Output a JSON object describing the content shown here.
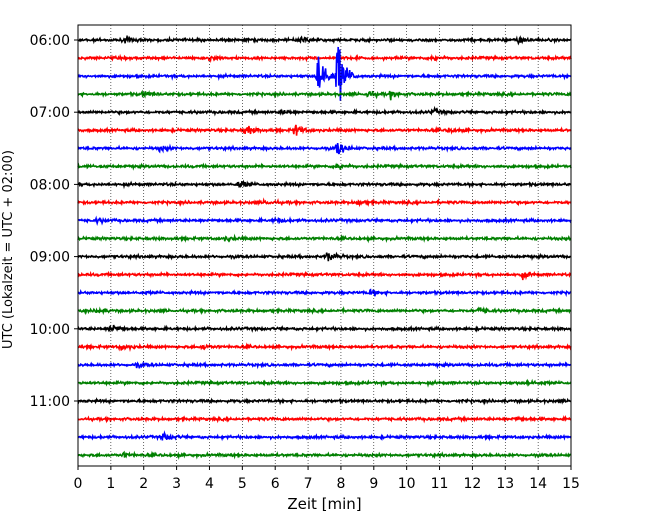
{
  "chart_data": {
    "type": "line",
    "title": "",
    "xlabel": "Zeit  [min]",
    "ylabel": "UTC (Lokalzeit = UTC + 02:00)",
    "xlim": [
      0,
      15
    ],
    "x_ticks": [
      0,
      1,
      2,
      3,
      4,
      5,
      6,
      7,
      8,
      9,
      10,
      11,
      12,
      13,
      14,
      15
    ],
    "x_grid": true,
    "trace_interval_min": 15,
    "row_offsets_hours": [
      0,
      0.25,
      0.5,
      0.75,
      1,
      1.25,
      1.5,
      1.75,
      2,
      2.25,
      2.5,
      2.75,
      3,
      3.25,
      3.5,
      3.75,
      4,
      4.25,
      4.5,
      4.75,
      5,
      5.25,
      5.5,
      5.75
    ],
    "y_tick_labels": [
      "06:00",
      "07:00",
      "08:00",
      "09:00",
      "10:00",
      "11:00"
    ],
    "y_tick_row_index": [
      0,
      4,
      8,
      12,
      16,
      20
    ],
    "row_colors": [
      "#000000",
      "#ff0000",
      "#0000ff",
      "#008000"
    ],
    "events": [
      {
        "row": 0,
        "t": 1.4,
        "amp": 0.4
      },
      {
        "row": 0,
        "t": 6.8,
        "amp": 0.5
      },
      {
        "row": 0,
        "t": 13.4,
        "amp": 0.5
      },
      {
        "row": 1,
        "t": 4.0,
        "amp": 0.35
      },
      {
        "row": 1,
        "t": 10.8,
        "amp": 0.45
      },
      {
        "row": 2,
        "t": 7.3,
        "amp": 5.0
      },
      {
        "row": 2,
        "t": 7.9,
        "amp": 6.0
      },
      {
        "row": 3,
        "t": 2.0,
        "amp": 0.4
      },
      {
        "row": 3,
        "t": 8.8,
        "amp": 0.6
      },
      {
        "row": 3,
        "t": 9.5,
        "amp": 0.5
      },
      {
        "row": 4,
        "t": 6.2,
        "amp": 0.35
      },
      {
        "row": 4,
        "t": 10.8,
        "amp": 0.4
      },
      {
        "row": 5,
        "t": 5.1,
        "amp": 0.9
      },
      {
        "row": 5,
        "t": 6.6,
        "amp": 0.9
      },
      {
        "row": 5,
        "t": 11.3,
        "amp": 0.4
      },
      {
        "row": 6,
        "t": 2.5,
        "amp": 0.35
      },
      {
        "row": 6,
        "t": 7.9,
        "amp": 1.3
      },
      {
        "row": 7,
        "t": 7.9,
        "amp": 0.7
      },
      {
        "row": 8,
        "t": 4.9,
        "amp": 0.5
      },
      {
        "row": 9,
        "t": 5.7,
        "amp": 0.35
      },
      {
        "row": 9,
        "t": 8.5,
        "amp": 0.35
      },
      {
        "row": 10,
        "t": 0.6,
        "amp": 0.35
      },
      {
        "row": 10,
        "t": 6.0,
        "amp": 0.35
      },
      {
        "row": 11,
        "t": 4.5,
        "amp": 0.35
      },
      {
        "row": 12,
        "t": 7.6,
        "amp": 0.9
      },
      {
        "row": 13,
        "t": 13.5,
        "amp": 0.5
      },
      {
        "row": 14,
        "t": 8.9,
        "amp": 0.5
      },
      {
        "row": 15,
        "t": 0.6,
        "amp": 0.45
      },
      {
        "row": 15,
        "t": 12.2,
        "amp": 0.55
      },
      {
        "row": 16,
        "t": 1.0,
        "amp": 0.75
      },
      {
        "row": 17,
        "t": 1.3,
        "amp": 0.6
      },
      {
        "row": 17,
        "t": 3.8,
        "amp": 0.35
      },
      {
        "row": 18,
        "t": 1.8,
        "amp": 0.3
      },
      {
        "row": 19,
        "t": 13.7,
        "amp": 0.35
      },
      {
        "row": 21,
        "t": 13.3,
        "amp": 0.3
      },
      {
        "row": 22,
        "t": 2.6,
        "amp": 0.8
      },
      {
        "row": 23,
        "t": 1.4,
        "amp": 0.3
      }
    ],
    "colors": {
      "black": "#000000",
      "red": "#ff0000",
      "blue": "#0000ff",
      "green": "#008000",
      "grid": "#000000"
    }
  }
}
